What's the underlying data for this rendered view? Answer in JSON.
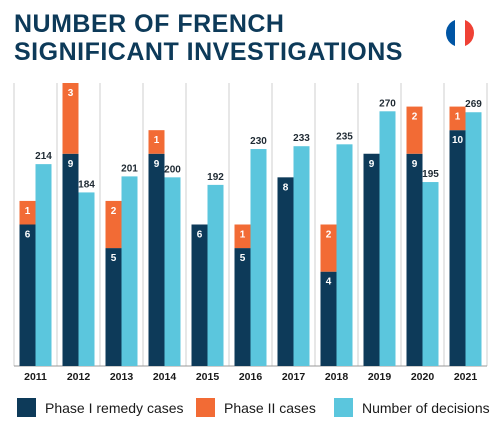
{
  "title": "NUMBER OF FRENCH SIGNIFICANT INVESTIGATIONS",
  "flag": {
    "name": "france-flag-icon",
    "colors": [
      "#0055A4",
      "#FFFFFF",
      "#EF4135"
    ]
  },
  "colors": {
    "phase1": "#0d3a59",
    "phase2": "#f26b35",
    "decisions": "#5bc6dd",
    "grid": "#cfcfcf",
    "title": "#0d3a59"
  },
  "legend": [
    {
      "label": "Phase I remedy cases",
      "color": "#0d3a59"
    },
    {
      "label": "Phase II cases",
      "color": "#f26b35"
    },
    {
      "label": "Number of decisions",
      "color": "#5bc6dd"
    }
  ],
  "chart_data": {
    "type": "bar",
    "title": "NUMBER OF FRENCH SIGNIFICANT INVESTIGATIONS",
    "categories": [
      "2011",
      "2012",
      "2013",
      "2014",
      "2015",
      "2016",
      "2017",
      "2018",
      "2019",
      "2020",
      "2021"
    ],
    "series": [
      {
        "name": "Phase I remedy cases",
        "values": [
          6,
          9,
          5,
          9,
          6,
          5,
          8,
          4,
          9,
          9,
          10
        ],
        "stack": "cases"
      },
      {
        "name": "Phase II cases",
        "values": [
          1,
          3,
          2,
          1,
          0,
          1,
          0,
          2,
          0,
          2,
          1
        ],
        "stack": "cases"
      },
      {
        "name": "Number of decisions",
        "values": [
          214,
          184,
          201,
          200,
          192,
          230,
          233,
          235,
          270,
          195,
          269
        ]
      }
    ],
    "cases_max": 12,
    "decisions_max": 300,
    "grid": "vertical separators",
    "legend_position": "bottom"
  }
}
